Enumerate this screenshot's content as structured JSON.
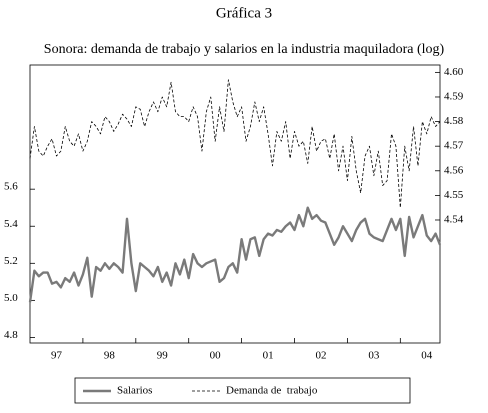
{
  "chart_data": {
    "type": "line",
    "title": "Gráfica 3",
    "subtitle": "Sonora: demanda de trabajo y salarios en la industria maquiladora (log)",
    "categories": [
      null,
      null,
      null,
      null,
      null,
      null,
      "97",
      null,
      null,
      null,
      null,
      null,
      null,
      null,
      null,
      null,
      null,
      null,
      "98",
      null,
      null,
      null,
      null,
      null,
      null,
      null,
      null,
      null,
      null,
      null,
      "99",
      null,
      null,
      null,
      null,
      null,
      null,
      null,
      null,
      null,
      null,
      null,
      "00",
      null,
      null,
      null,
      null,
      null,
      null,
      null,
      null,
      null,
      null,
      null,
      "01",
      null,
      null,
      null,
      null,
      null,
      null,
      null,
      null,
      null,
      null,
      null,
      "02",
      null,
      null,
      null,
      null,
      null,
      null,
      null,
      null,
      null,
      null,
      null,
      "03",
      null,
      null,
      null,
      null,
      null,
      null,
      null,
      null,
      null,
      null,
      null,
      "04",
      null,
      null,
      null
    ],
    "series": [
      {
        "name": "Salarios",
        "color": "#7a7a7a",
        "line_style": "solid",
        "axis": "y",
        "values": [
          4.99,
          5.16,
          5.13,
          5.15,
          5.15,
          5.09,
          5.1,
          5.07,
          5.12,
          5.1,
          5.15,
          5.08,
          5.14,
          5.23,
          5.02,
          5.18,
          5.16,
          5.2,
          5.17,
          5.2,
          5.18,
          5.15,
          5.44,
          5.2,
          5.05,
          5.2,
          5.18,
          5.16,
          5.13,
          5.18,
          5.1,
          5.15,
          5.08,
          5.2,
          5.14,
          5.22,
          5.12,
          5.25,
          5.2,
          5.18,
          5.2,
          5.21,
          5.22,
          5.1,
          5.12,
          5.18,
          5.2,
          5.15,
          5.33,
          5.22,
          5.33,
          5.34,
          5.24,
          5.33,
          5.36,
          5.35,
          5.38,
          5.37,
          5.4,
          5.42,
          5.38,
          5.46,
          5.4,
          5.5,
          5.44,
          5.46,
          5.43,
          5.42,
          5.36,
          5.3,
          5.34,
          5.4,
          5.36,
          5.32,
          5.38,
          5.42,
          5.44,
          5.36,
          5.34,
          5.33,
          5.32,
          5.38,
          5.44,
          5.38,
          5.44,
          5.24,
          5.45,
          5.34,
          5.4,
          5.46,
          5.35,
          5.32,
          5.36,
          5.3
        ]
      },
      {
        "name": "Demanda de  trabajo",
        "color": "#000000",
        "line_style": "dashed",
        "axis": "y2",
        "values": [
          4.565,
          4.578,
          4.568,
          4.566,
          4.57,
          4.573,
          4.566,
          4.568,
          4.578,
          4.572,
          4.57,
          4.575,
          4.568,
          4.572,
          4.58,
          4.578,
          4.575,
          4.582,
          4.58,
          4.576,
          4.579,
          4.583,
          4.581,
          4.578,
          4.586,
          4.585,
          4.578,
          4.584,
          4.588,
          4.584,
          4.59,
          4.586,
          4.596,
          4.584,
          4.582,
          4.582,
          4.58,
          4.586,
          4.582,
          4.568,
          4.584,
          4.59,
          4.572,
          4.586,
          4.576,
          4.597,
          4.588,
          4.582,
          4.586,
          4.572,
          4.578,
          4.588,
          4.58,
          4.586,
          4.575,
          4.562,
          4.576,
          4.572,
          4.58,
          4.565,
          4.576,
          4.57,
          4.572,
          4.563,
          4.578,
          4.568,
          4.572,
          4.573,
          4.565,
          4.575,
          4.56,
          4.57,
          4.556,
          4.574,
          4.56,
          4.551,
          4.566,
          4.57,
          4.558,
          4.568,
          4.554,
          4.556,
          4.575,
          4.57,
          4.545,
          4.57,
          4.56,
          4.578,
          4.562,
          4.58,
          4.575,
          4.582,
          4.578,
          4.58
        ]
      }
    ],
    "ylim": [
      4.77,
      6.27
    ],
    "yticks": [
      4.8,
      {
        "value": 5,
        "label": "5.0"
      },
      5.2,
      5.4,
      5.6
    ],
    "y2lim": [
      4.49,
      4.603
    ],
    "y2ticks": [
      {
        "value": 4.54,
        "label": "4.54"
      },
      {
        "value": 4.55,
        "label": "4.55"
      },
      {
        "value": 4.56,
        "label": "4.56"
      },
      {
        "value": 4.57,
        "label": "4.57"
      },
      {
        "value": 4.58,
        "label": "4.58"
      },
      {
        "value": 4.59,
        "label": "4.59"
      },
      {
        "value": 4.6,
        "label": "4.60"
      }
    ],
    "legend": "bottom"
  }
}
